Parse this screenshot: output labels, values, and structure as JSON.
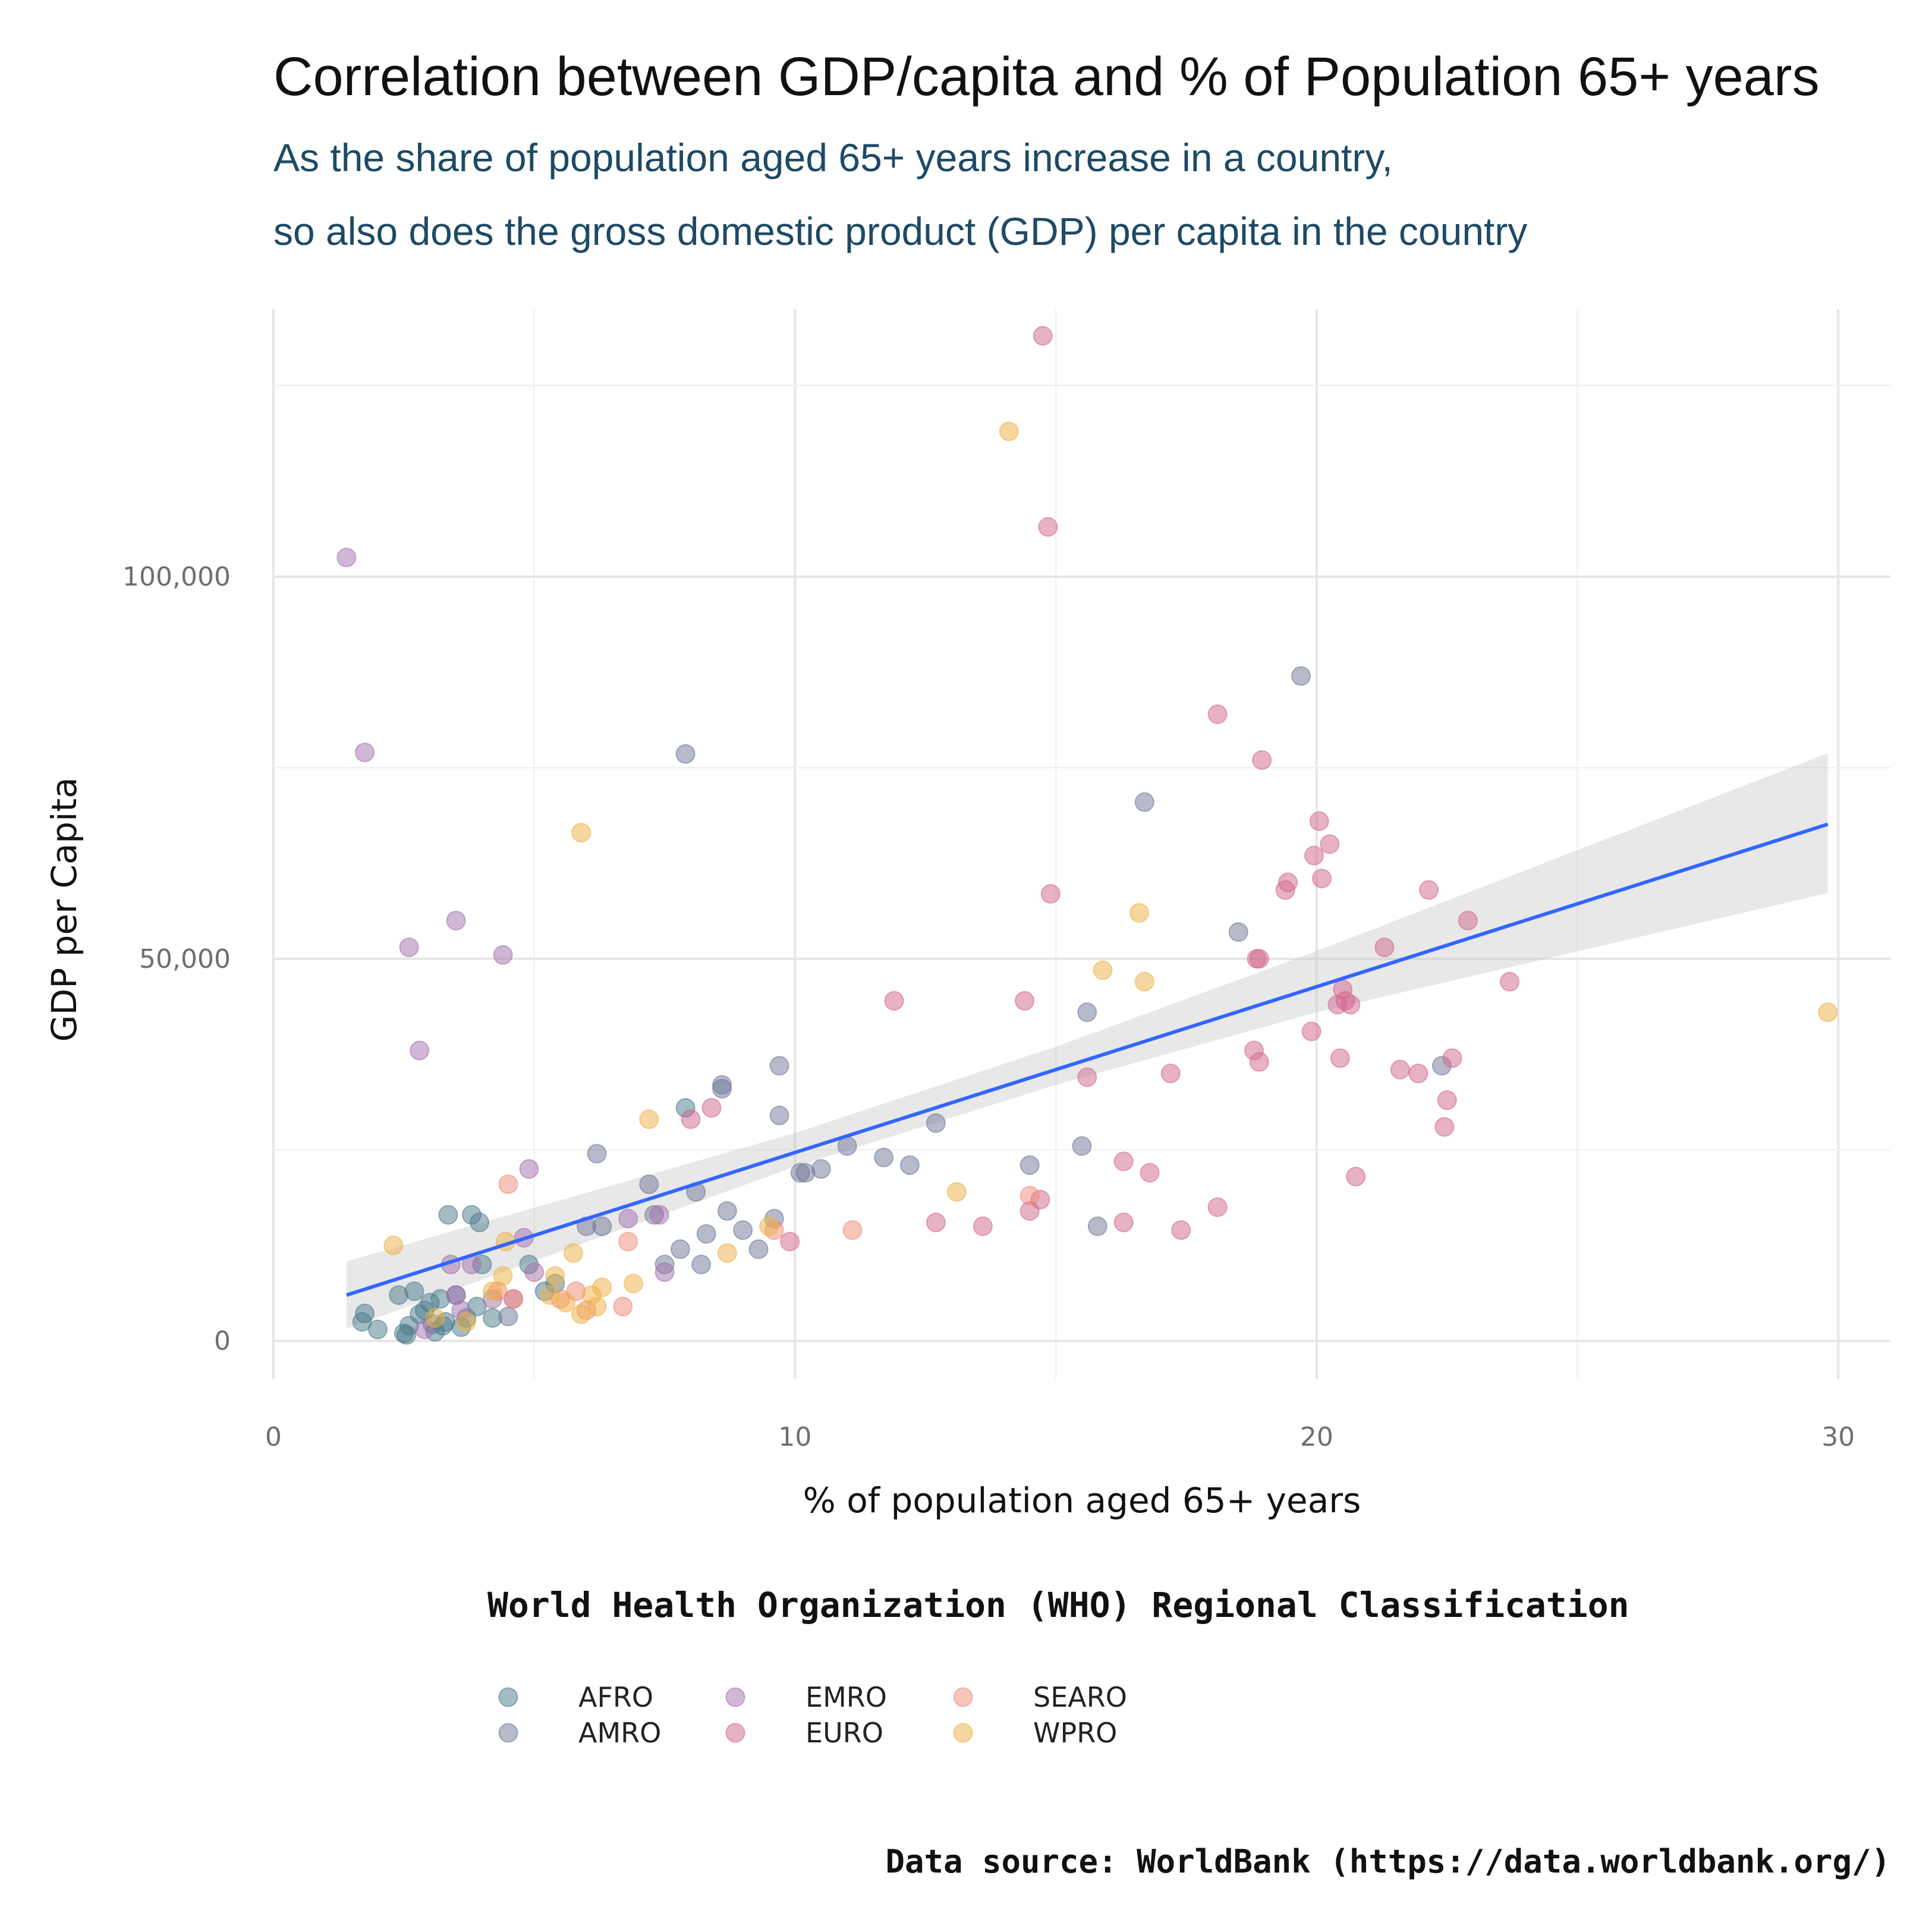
{
  "chart_data": {
    "type": "scatter",
    "title": "Correlation between GDP/capita and % of Population 65+ years",
    "subtitle_lines": [
      "As the share of population aged 65+ years increase in a country,",
      "so also does the gross domestic product (GDP) per capita in the country"
    ],
    "xlabel": "% of population aged 65+ years",
    "ylabel": "GDP per Capita",
    "xlim": [
      0,
      31
    ],
    "ylim": [
      -5000,
      135000
    ],
    "x_ticks": [
      0,
      10,
      20,
      30
    ],
    "x_tick_labels": [
      "0",
      "10",
      "20",
      "30"
    ],
    "y_ticks": [
      0,
      50000,
      100000
    ],
    "y_tick_labels": [
      "0",
      "50,000",
      "100,000"
    ],
    "grid": true,
    "legend": {
      "title": "World Health Organization (WHO) Regional Classification",
      "placement": "bottom",
      "entries": [
        {
          "name": "AFRO",
          "color": "#4a7a8a"
        },
        {
          "name": "AMRO",
          "color": "#6f7596"
        },
        {
          "name": "EMRO",
          "color": "#a36fae"
        },
        {
          "name": "EURO",
          "color": "#d1658d"
        },
        {
          "name": "SEARO",
          "color": "#ef8a76"
        },
        {
          "name": "WPRO",
          "color": "#eeb043"
        }
      ]
    },
    "trend_line": {
      "color": "#3366ff",
      "band_color": "#bdbdbd",
      "points": [
        {
          "x": 1.4,
          "y": 6000,
          "lower": 1600,
          "upper": 10400
        },
        {
          "x": 10,
          "y": 25000,
          "lower": 22800,
          "upper": 27200
        },
        {
          "x": 15,
          "y": 36000,
          "lower": 33500,
          "upper": 38500
        },
        {
          "x": 20,
          "y": 47000,
          "lower": 43000,
          "upper": 51000
        },
        {
          "x": 29.8,
          "y": 67600,
          "lower": 58600,
          "upper": 76900
        }
      ]
    },
    "series": [
      {
        "name": "AFRO",
        "color": "#4a7a8a",
        "points": [
          [
            1.7,
            2500
          ],
          [
            1.75,
            3600
          ],
          [
            2.0,
            1500
          ],
          [
            2.4,
            6000
          ],
          [
            2.5,
            1000
          ],
          [
            2.6,
            2000
          ],
          [
            2.7,
            6500
          ],
          [
            2.8,
            3500
          ],
          [
            2.9,
            4000
          ],
          [
            3.0,
            5000
          ],
          [
            3.1,
            1200
          ],
          [
            3.2,
            5500
          ],
          [
            3.3,
            2500
          ],
          [
            3.35,
            16500
          ],
          [
            3.5,
            6000
          ],
          [
            3.6,
            1800
          ],
          [
            3.7,
            3000
          ],
          [
            3.8,
            16500
          ],
          [
            3.9,
            4500
          ],
          [
            3.95,
            15500
          ],
          [
            4.0,
            10000
          ],
          [
            4.2,
            3000
          ],
          [
            4.9,
            10000
          ],
          [
            5.2,
            6500
          ],
          [
            5.4,
            7500
          ],
          [
            7.9,
            30500
          ],
          [
            2.55,
            800
          ],
          [
            3.05,
            2200
          ],
          [
            3.25,
            2000
          ]
        ]
      },
      {
        "name": "AMRO",
        "color": "#6f7596",
        "points": [
          [
            4.5,
            3200
          ],
          [
            6.0,
            15000
          ],
          [
            6.2,
            24500
          ],
          [
            6.3,
            15000
          ],
          [
            7.2,
            20500
          ],
          [
            7.3,
            16500
          ],
          [
            7.5,
            10000
          ],
          [
            7.8,
            12000
          ],
          [
            7.9,
            76800
          ],
          [
            8.1,
            19500
          ],
          [
            8.2,
            10000
          ],
          [
            8.3,
            14000
          ],
          [
            8.6,
            33000
          ],
          [
            8.6,
            33500
          ],
          [
            8.7,
            17000
          ],
          [
            9.0,
            14500
          ],
          [
            9.3,
            12000
          ],
          [
            9.6,
            16000
          ],
          [
            9.7,
            29500
          ],
          [
            9.7,
            36000
          ],
          [
            10.1,
            22000
          ],
          [
            10.2,
            22000
          ],
          [
            10.5,
            22500
          ],
          [
            11.0,
            25500
          ],
          [
            11.7,
            24000
          ],
          [
            12.2,
            23000
          ],
          [
            12.7,
            28500
          ],
          [
            14.5,
            23000
          ],
          [
            15.5,
            25500
          ],
          [
            15.6,
            43000
          ],
          [
            15.8,
            15000
          ],
          [
            16.7,
            70500
          ],
          [
            18.5,
            53500
          ],
          [
            19.7,
            87000
          ],
          [
            22.4,
            36000
          ]
        ]
      },
      {
        "name": "EMRO",
        "color": "#a36fae",
        "points": [
          [
            1.4,
            102500
          ],
          [
            1.75,
            77000
          ],
          [
            2.6,
            51500
          ],
          [
            2.8,
            38000
          ],
          [
            3.4,
            10000
          ],
          [
            3.5,
            55000
          ],
          [
            3.5,
            6000
          ],
          [
            3.8,
            10000
          ],
          [
            4.2,
            5500
          ],
          [
            4.4,
            50500
          ],
          [
            4.6,
            5500
          ],
          [
            4.8,
            13500
          ],
          [
            4.9,
            22500
          ],
          [
            5.0,
            9000
          ],
          [
            7.5,
            9000
          ],
          [
            6.8,
            16000
          ],
          [
            7.4,
            16500
          ],
          [
            2.9,
            1500
          ],
          [
            3.6,
            4000
          ]
        ]
      },
      {
        "name": "EURO",
        "color": "#d1658d",
        "points": [
          [
            8.0,
            29000
          ],
          [
            8.4,
            30500
          ],
          [
            9.9,
            13000
          ],
          [
            11.9,
            44500
          ],
          [
            12.7,
            15500
          ],
          [
            13.6,
            15000
          ],
          [
            14.4,
            44500
          ],
          [
            14.5,
            17000
          ],
          [
            14.7,
            18500
          ],
          [
            14.75,
            131500
          ],
          [
            14.85,
            106500
          ],
          [
            14.9,
            58500
          ],
          [
            15.6,
            34500
          ],
          [
            16.3,
            23500
          ],
          [
            16.3,
            15500
          ],
          [
            16.8,
            22000
          ],
          [
            17.2,
            35000
          ],
          [
            17.4,
            14500
          ],
          [
            18.1,
            82000
          ],
          [
            18.1,
            17500
          ],
          [
            18.8,
            38000
          ],
          [
            18.85,
            50000
          ],
          [
            18.9,
            50000
          ],
          [
            18.9,
            36500
          ],
          [
            18.95,
            76000
          ],
          [
            19.4,
            59000
          ],
          [
            19.45,
            60000
          ],
          [
            19.9,
            40500
          ],
          [
            19.95,
            63500
          ],
          [
            20.05,
            68000
          ],
          [
            20.1,
            60500
          ],
          [
            20.25,
            65000
          ],
          [
            20.4,
            44000
          ],
          [
            20.45,
            37000
          ],
          [
            20.5,
            46000
          ],
          [
            20.55,
            44500
          ],
          [
            20.65,
            44000
          ],
          [
            20.75,
            21500
          ],
          [
            21.3,
            51500
          ],
          [
            21.6,
            35500
          ],
          [
            21.95,
            35000
          ],
          [
            22.15,
            59000
          ],
          [
            22.45,
            28000
          ],
          [
            22.5,
            31500
          ],
          [
            22.6,
            37000
          ],
          [
            22.9,
            55000
          ],
          [
            23.7,
            47000
          ]
        ]
      },
      {
        "name": "SEARO",
        "color": "#ef8a76",
        "points": [
          [
            4.5,
            20500
          ],
          [
            4.6,
            5500
          ],
          [
            5.5,
            5500
          ],
          [
            5.8,
            6500
          ],
          [
            6.0,
            4000
          ],
          [
            6.7,
            4500
          ],
          [
            6.8,
            13000
          ],
          [
            9.6,
            14500
          ],
          [
            11.1,
            14500
          ],
          [
            14.5,
            19000
          ],
          [
            4.3,
            6500
          ]
        ]
      },
      {
        "name": "WPRO",
        "color": "#eeb043",
        "points": [
          [
            2.3,
            12500
          ],
          [
            3.1,
            3000
          ],
          [
            3.7,
            2500
          ],
          [
            4.2,
            6500
          ],
          [
            4.4,
            8500
          ],
          [
            4.45,
            13000
          ],
          [
            5.3,
            6000
          ],
          [
            5.4,
            8500
          ],
          [
            5.6,
            5000
          ],
          [
            5.75,
            11500
          ],
          [
            5.9,
            66500
          ],
          [
            5.9,
            3500
          ],
          [
            6.1,
            6000
          ],
          [
            6.2,
            4500
          ],
          [
            6.3,
            7000
          ],
          [
            6.9,
            7500
          ],
          [
            7.2,
            29000
          ],
          [
            8.7,
            11500
          ],
          [
            9.5,
            15000
          ],
          [
            13.1,
            19500
          ],
          [
            14.1,
            119000
          ],
          [
            15.9,
            48500
          ],
          [
            16.6,
            56000
          ],
          [
            16.7,
            47000
          ],
          [
            29.8,
            43000
          ]
        ]
      }
    ],
    "caption": "Data source: WorldBank (https://data.worldbank.org/)"
  }
}
